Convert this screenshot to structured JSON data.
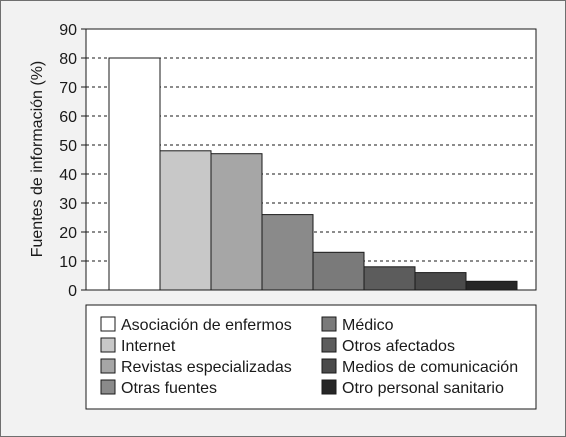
{
  "chart_data": {
    "type": "bar",
    "title": "",
    "xlabel": "",
    "ylabel": "Fuentes de información (%)",
    "ylim": [
      0,
      90
    ],
    "yticks": [
      0,
      10,
      20,
      30,
      40,
      50,
      60,
      70,
      80,
      90
    ],
    "grid": "horizontal-dashed",
    "legend_placement": "bottom",
    "categories": [
      "Asociación de enfermos",
      "Internet",
      "Revistas especializadas",
      "Otras fuentes",
      "Médico",
      "Otros afectados",
      "Medios de comunicación",
      "Otro personal sanitario"
    ],
    "values": [
      80,
      48,
      47,
      26,
      13,
      8,
      6,
      3
    ],
    "colors": [
      "#ffffff",
      "#c8c8c8",
      "#a6a6a6",
      "#8a8a8a",
      "#7a7a7a",
      "#5c5c5c",
      "#4a4a4a",
      "#262626"
    ]
  }
}
